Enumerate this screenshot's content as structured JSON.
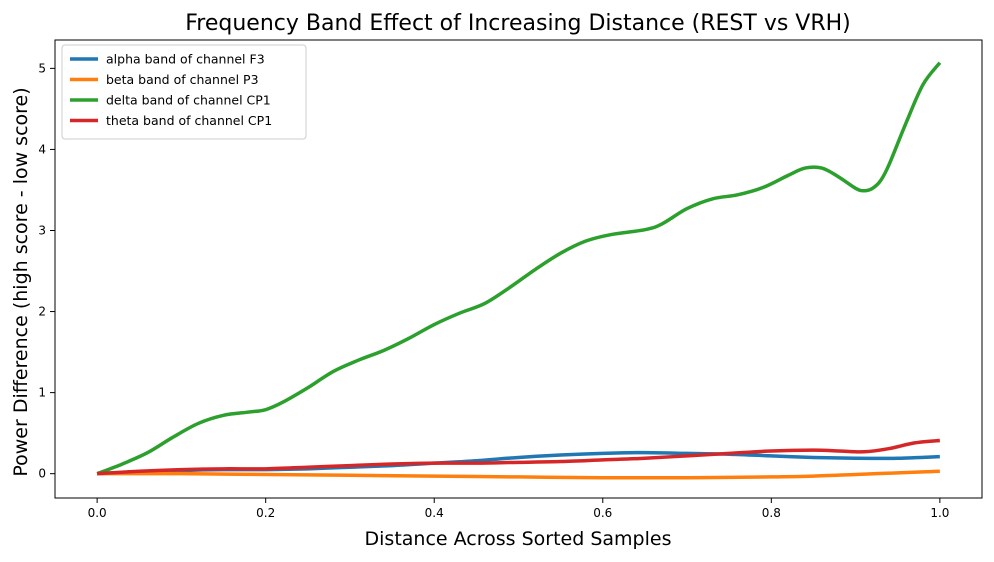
{
  "chart_data": {
    "type": "line",
    "title": "Frequency Band Effect of Increasing Distance (REST vs VRH)",
    "xlabel": "Distance Across Sorted Samples",
    "ylabel": "Power Difference (high score - low score)",
    "xlim": [
      -0.05,
      1.05
    ],
    "ylim": [
      -0.3,
      5.35
    ],
    "xticks": [
      0.0,
      0.2,
      0.4,
      0.6,
      0.8,
      1.0
    ],
    "xtick_labels": [
      "0.0",
      "0.2",
      "0.4",
      "0.6",
      "0.8",
      "1.0"
    ],
    "yticks": [
      0,
      1,
      2,
      3,
      4,
      5
    ],
    "ytick_labels": [
      "0",
      "1",
      "2",
      "3",
      "4",
      "5"
    ],
    "grid": false,
    "legend_position": "top-left",
    "series": [
      {
        "name": "alpha band of channel F3",
        "color": "#1f77b4",
        "x": [
          0.0,
          0.05,
          0.1,
          0.15,
          0.2,
          0.25,
          0.3,
          0.35,
          0.4,
          0.45,
          0.5,
          0.55,
          0.6,
          0.65,
          0.7,
          0.75,
          0.8,
          0.85,
          0.9,
          0.95,
          1.0
        ],
        "y": [
          0.0,
          0.02,
          0.04,
          0.05,
          0.05,
          0.06,
          0.08,
          0.1,
          0.13,
          0.16,
          0.2,
          0.23,
          0.25,
          0.26,
          0.25,
          0.24,
          0.22,
          0.2,
          0.19,
          0.19,
          0.21
        ]
      },
      {
        "name": "beta band of channel P3",
        "color": "#ff7f0e",
        "x": [
          0.0,
          0.1,
          0.2,
          0.3,
          0.4,
          0.5,
          0.6,
          0.7,
          0.8,
          0.85,
          0.9,
          0.95,
          1.0
        ],
        "y": [
          0.0,
          0.0,
          -0.01,
          -0.02,
          -0.03,
          -0.04,
          -0.05,
          -0.05,
          -0.04,
          -0.03,
          -0.01,
          0.01,
          0.03
        ]
      },
      {
        "name": "delta band of channel CP1",
        "color": "#2ca02c",
        "x": [
          0.0,
          0.03,
          0.06,
          0.09,
          0.12,
          0.15,
          0.18,
          0.2,
          0.22,
          0.25,
          0.28,
          0.31,
          0.34,
          0.37,
          0.4,
          0.43,
          0.46,
          0.49,
          0.52,
          0.55,
          0.58,
          0.61,
          0.65,
          0.67,
          0.7,
          0.73,
          0.76,
          0.79,
          0.82,
          0.84,
          0.86,
          0.88,
          0.9,
          0.91,
          0.92,
          0.93,
          0.94,
          0.96,
          0.98,
          1.0
        ],
        "y": [
          0.0,
          0.12,
          0.26,
          0.45,
          0.62,
          0.72,
          0.76,
          0.79,
          0.88,
          1.06,
          1.26,
          1.4,
          1.52,
          1.67,
          1.84,
          1.98,
          2.1,
          2.3,
          2.52,
          2.72,
          2.87,
          2.95,
          3.01,
          3.08,
          3.27,
          3.39,
          3.44,
          3.53,
          3.68,
          3.77,
          3.77,
          3.66,
          3.52,
          3.49,
          3.52,
          3.62,
          3.82,
          4.33,
          4.8,
          5.07
        ]
      },
      {
        "name": "theta band of channel CP1",
        "color": "#d62728",
        "x": [
          0.0,
          0.05,
          0.1,
          0.15,
          0.2,
          0.25,
          0.3,
          0.35,
          0.4,
          0.45,
          0.5,
          0.55,
          0.6,
          0.65,
          0.7,
          0.75,
          0.8,
          0.85,
          0.88,
          0.91,
          0.94,
          0.97,
          1.0
        ],
        "y": [
          0.0,
          0.03,
          0.05,
          0.06,
          0.06,
          0.08,
          0.1,
          0.12,
          0.13,
          0.13,
          0.14,
          0.15,
          0.17,
          0.19,
          0.22,
          0.25,
          0.28,
          0.29,
          0.28,
          0.27,
          0.31,
          0.38,
          0.41
        ]
      }
    ]
  }
}
